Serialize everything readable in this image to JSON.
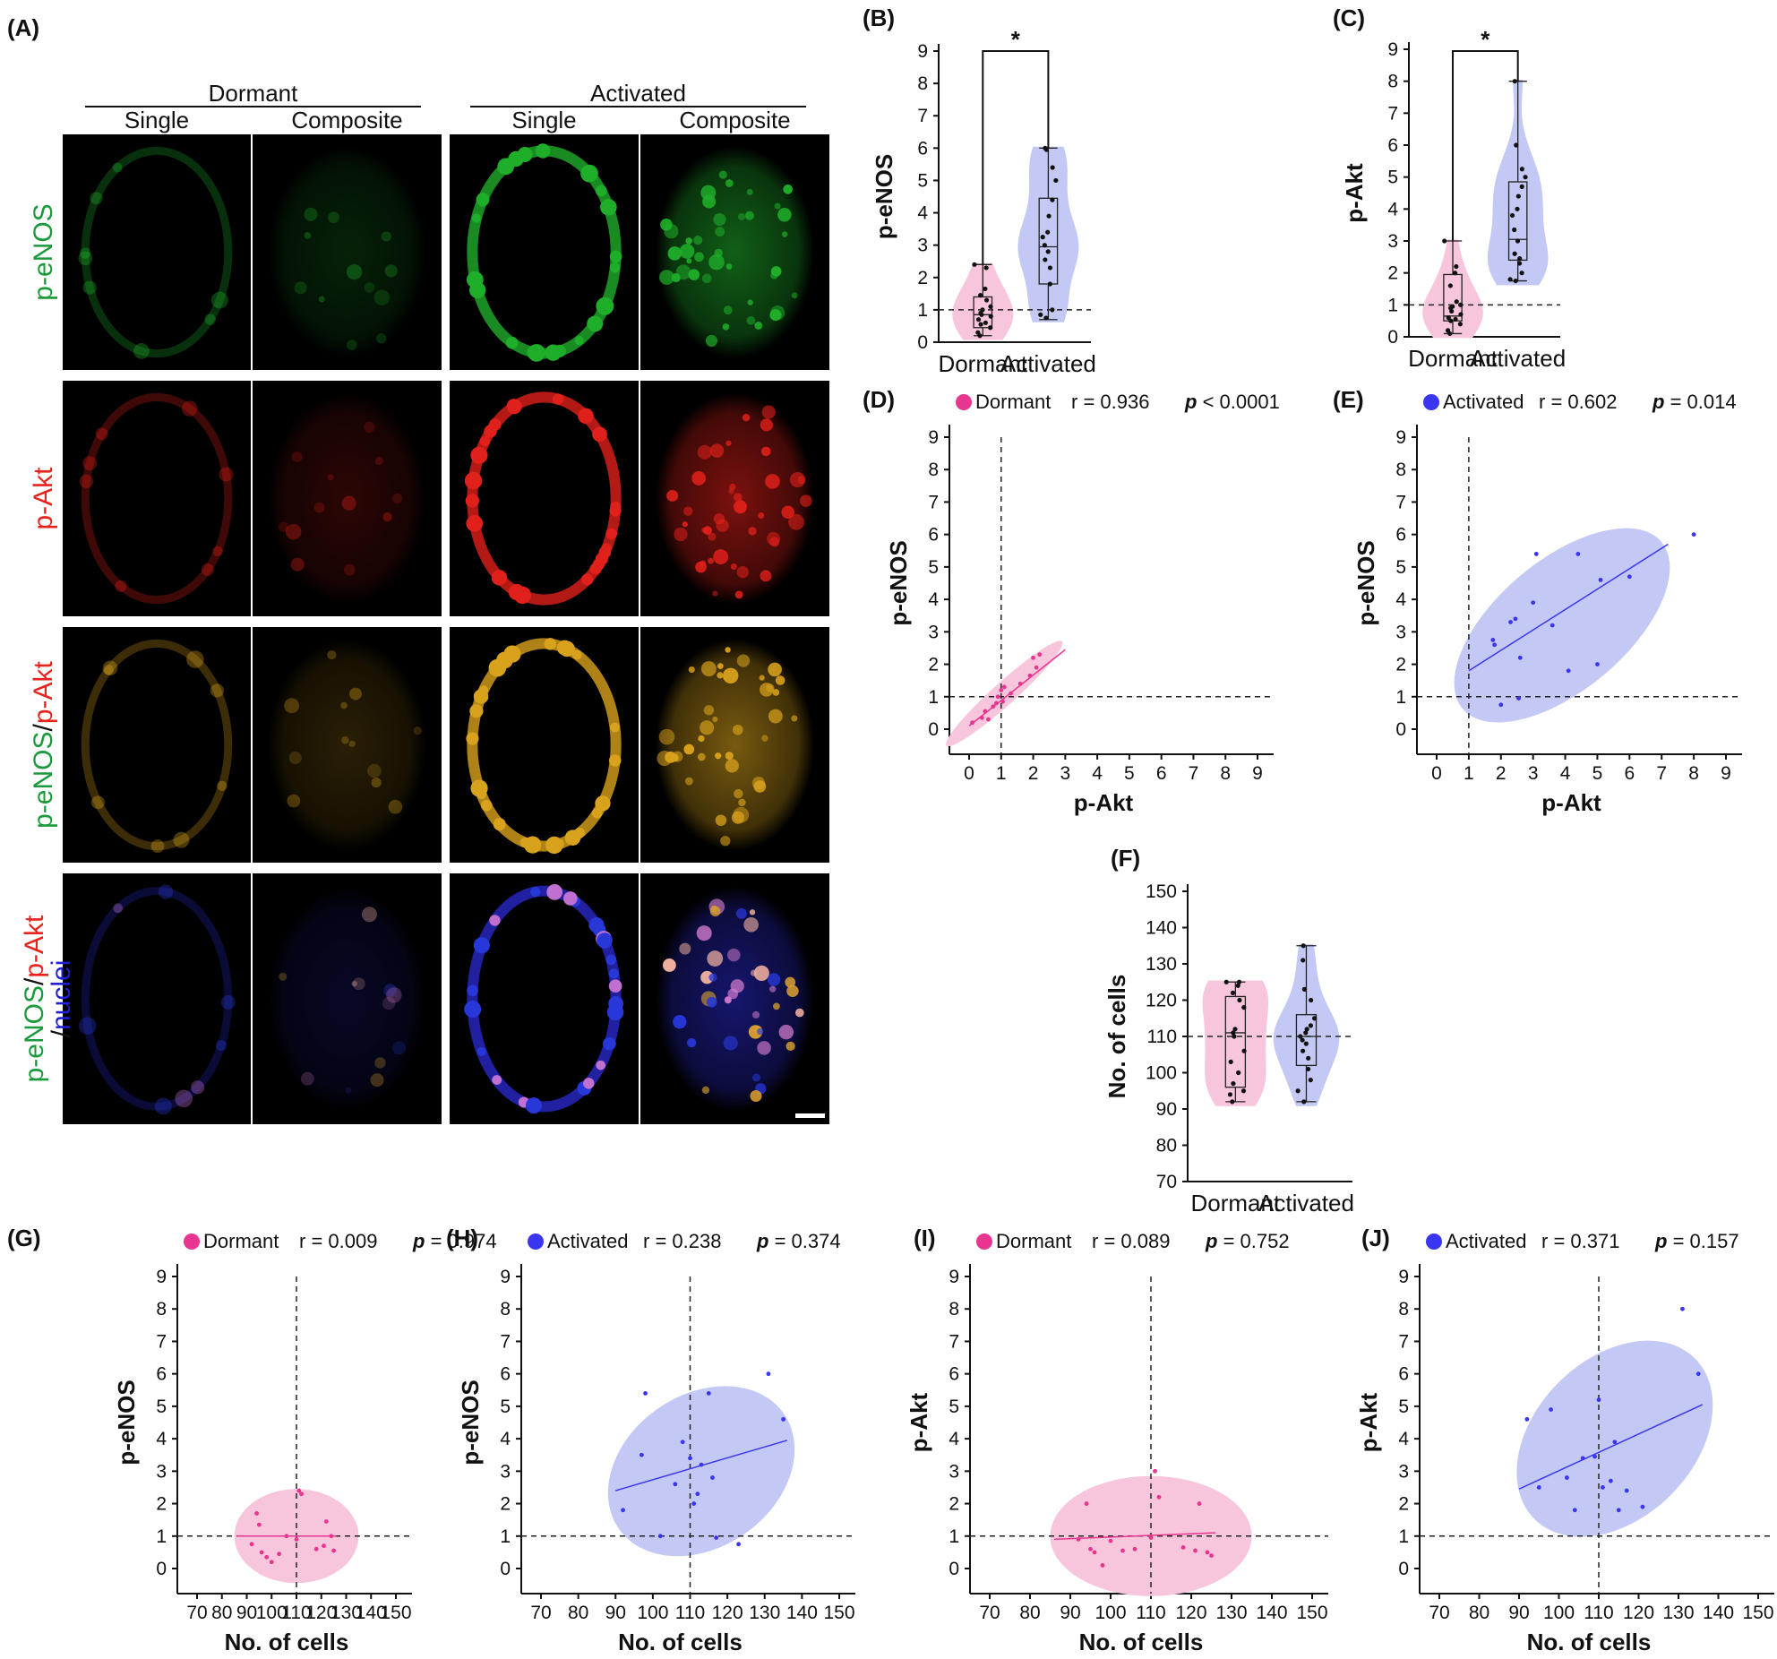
{
  "panel_a": {
    "label": "(A)",
    "group_headers": [
      "Dormant",
      "Activated"
    ],
    "column_headers": [
      "Single",
      "Composite",
      "Single",
      "Composite"
    ],
    "row_labels": [
      [
        {
          "text": "p-eNOS",
          "color": "#1a9a3a"
        }
      ],
      [
        {
          "text": "p-Akt",
          "color": "#e8231c"
        }
      ],
      [
        {
          "text": "p-eNOS",
          "color": "#1a9a3a"
        },
        {
          "text": "/",
          "color": "#111111"
        },
        {
          "text": "p-Akt",
          "color": "#e8231c"
        }
      ],
      [
        {
          "text": "p-eNOS",
          "color": "#1a9a3a"
        },
        {
          "text": "/",
          "color": "#111111"
        },
        {
          "text": "p-Akt",
          "color": "#e8231c"
        },
        {
          "text": "/",
          "color": "#111111"
        },
        {
          "text": "nuclei",
          "color": "#2020d0"
        }
      ]
    ],
    "channel_colors": {
      "green": "#1fae2a",
      "red": "#e0201a",
      "merge": "#d9a21c",
      "blue": "#2828c8"
    }
  },
  "colors": {
    "dormant": "#f7c6dc",
    "dormant_marker": "#e8358f",
    "activated": "#c3c9f4",
    "activated_marker": "#3a35f0"
  },
  "chart_data": [
    {
      "id": "B",
      "label": "(B)",
      "type": "violin",
      "ylabel": "p-eNOS",
      "ylim": [
        0,
        9
      ],
      "yticks": [
        0,
        1,
        2,
        3,
        4,
        5,
        6,
        7,
        8,
        9
      ],
      "reference_line": 1,
      "categories": [
        "Dormant",
        "Activated"
      ],
      "significance": "*",
      "groups": [
        {
          "name": "Dormant",
          "box": {
            "min": 0.2,
            "q1": 0.45,
            "median": 0.85,
            "q3": 1.4,
            "max": 2.4
          },
          "points": [
            0.2,
            0.3,
            0.45,
            0.55,
            0.6,
            0.7,
            0.8,
            0.85,
            0.9,
            1.0,
            1.1,
            1.3,
            1.45,
            1.65,
            2.3,
            2.4
          ]
        },
        {
          "name": "Activated",
          "box": {
            "min": 0.7,
            "q1": 1.8,
            "median": 2.95,
            "q3": 4.45,
            "max": 6.0
          },
          "points": [
            0.75,
            0.85,
            1.0,
            1.8,
            2.3,
            2.55,
            2.8,
            3.0,
            3.25,
            3.4,
            3.9,
            4.4,
            5.0,
            5.4,
            5.95,
            6.0
          ]
        }
      ]
    },
    {
      "id": "C",
      "label": "(C)",
      "type": "violin",
      "ylabel": "p-Akt",
      "ylim": [
        0,
        9
      ],
      "yticks": [
        0,
        1,
        2,
        3,
        4,
        5,
        6,
        7,
        8,
        9
      ],
      "reference_line": 1,
      "categories": [
        "Dormant",
        "Activated"
      ],
      "significance": "*",
      "groups": [
        {
          "name": "Dormant",
          "box": {
            "min": 0.1,
            "q1": 0.5,
            "median": 0.65,
            "q3": 1.95,
            "max": 3.0
          },
          "points": [
            0.1,
            0.2,
            0.4,
            0.5,
            0.55,
            0.6,
            0.7,
            0.8,
            0.9,
            0.95,
            1.0,
            1.1,
            1.6,
            2.0,
            2.2,
            3.0
          ]
        },
        {
          "name": "Activated",
          "box": {
            "min": 1.75,
            "q1": 2.4,
            "median": 3.05,
            "q3": 4.85,
            "max": 8.0
          },
          "points": [
            1.75,
            1.8,
            2.0,
            2.3,
            2.45,
            2.6,
            3.0,
            3.35,
            3.8,
            4.0,
            4.4,
            4.7,
            5.0,
            5.25,
            6.0,
            8.0
          ]
        }
      ]
    },
    {
      "id": "D",
      "label": "(D)",
      "type": "scatter",
      "xlabel": "p-Akt",
      "ylabel": "p-eNOS",
      "xlim": [
        0,
        9
      ],
      "ylim": [
        0,
        9
      ],
      "xticks": [
        0,
        1,
        2,
        3,
        4,
        5,
        6,
        7,
        8,
        9
      ],
      "yticks": [
        0,
        1,
        2,
        3,
        4,
        5,
        6,
        7,
        8,
        9
      ],
      "ref_x": 1,
      "ref_y": 1,
      "group": "Dormant",
      "r": "r = 0.936",
      "p_label": "p",
      "p_value": "< 0.0001",
      "points": [
        [
          0.1,
          0.2
        ],
        [
          0.4,
          0.35
        ],
        [
          0.5,
          0.55
        ],
        [
          0.6,
          0.3
        ],
        [
          0.75,
          0.7
        ],
        [
          0.85,
          0.8
        ],
        [
          0.9,
          1.0
        ],
        [
          1.0,
          1.2
        ],
        [
          1.05,
          0.85
        ],
        [
          1.1,
          1.3
        ],
        [
          1.3,
          1.1
        ],
        [
          1.6,
          1.4
        ],
        [
          1.9,
          1.65
        ],
        [
          2.0,
          2.2
        ],
        [
          2.2,
          2.3
        ],
        [
          2.1,
          1.9
        ]
      ],
      "fit": [
        [
          0.0,
          0.1
        ],
        [
          3.0,
          2.45
        ]
      ],
      "ellipse": {
        "cx": 1.1,
        "cy": 1.1,
        "along": 2.4,
        "across": 0.35,
        "angle_deg": 42
      }
    },
    {
      "id": "E",
      "label": "(E)",
      "type": "scatter",
      "xlabel": "p-Akt",
      "ylabel": "p-eNOS",
      "xlim": [
        0,
        9
      ],
      "ylim": [
        0,
        9
      ],
      "xticks": [
        0,
        1,
        2,
        3,
        4,
        5,
        6,
        7,
        8,
        9
      ],
      "yticks": [
        0,
        1,
        2,
        3,
        4,
        5,
        6,
        7,
        8,
        9
      ],
      "ref_x": 1,
      "ref_y": 1,
      "group": "Activated",
      "r": "r = 0.602",
      "p_label": "p",
      "p_value": "= 0.014",
      "points": [
        [
          1.75,
          2.75
        ],
        [
          1.8,
          2.6
        ],
        [
          2.0,
          0.75
        ],
        [
          2.3,
          3.3
        ],
        [
          2.45,
          3.4
        ],
        [
          2.6,
          2.2
        ],
        [
          2.55,
          0.95
        ],
        [
          3.0,
          3.9
        ],
        [
          3.1,
          5.4
        ],
        [
          3.6,
          3.2
        ],
        [
          4.1,
          1.8
        ],
        [
          4.4,
          5.4
        ],
        [
          5.0,
          2.0
        ],
        [
          5.1,
          4.6
        ],
        [
          6.0,
          4.7
        ],
        [
          8.0,
          6.0
        ]
      ],
      "fit": [
        [
          1.0,
          1.8
        ],
        [
          7.2,
          5.7
        ]
      ],
      "ellipse": {
        "cx": 3.9,
        "cy": 3.2,
        "along": 4.0,
        "across": 2.0,
        "angle_deg": 40
      }
    },
    {
      "id": "F",
      "label": "(F)",
      "type": "violin",
      "ylabel": "No. of cells",
      "ylim": [
        70,
        150
      ],
      "yticks": [
        70,
        80,
        90,
        100,
        110,
        120,
        130,
        140,
        150
      ],
      "reference_line": 110,
      "categories": [
        "Dormant",
        "Activated"
      ],
      "groups": [
        {
          "name": "Dormant",
          "box": {
            "min": 92,
            "q1": 96,
            "median": 111,
            "q3": 121,
            "max": 125
          },
          "points": [
            92,
            94,
            95,
            97,
            100,
            103,
            106,
            110,
            111,
            112,
            118,
            120,
            122,
            124,
            125,
            125
          ]
        },
        {
          "name": "Activated",
          "box": {
            "min": 92,
            "q1": 102,
            "median": 110,
            "q3": 116,
            "max": 135
          },
          "points": [
            92,
            95,
            98,
            101,
            104,
            106,
            108,
            109,
            110,
            111,
            112,
            113,
            115,
            120,
            123,
            131,
            135
          ]
        }
      ]
    },
    {
      "id": "G",
      "label": "(G)",
      "type": "scatter",
      "xlabel": "No. of cells",
      "ylabel": "p-eNOS",
      "xlim": [
        70,
        150
      ],
      "ylim": [
        0,
        9
      ],
      "xticks": [
        70,
        80,
        90,
        100,
        110,
        120,
        130,
        140,
        150
      ],
      "yticks": [
        0,
        1,
        2,
        3,
        4,
        5,
        6,
        7,
        8,
        9
      ],
      "ref_x": 110,
      "ref_y": 1,
      "group": "Dormant",
      "r": "r = 0.009",
      "p_label": "p",
      "p_value": "= 0.974",
      "points": [
        [
          92,
          0.75
        ],
        [
          94,
          1.7
        ],
        [
          95,
          1.35
        ],
        [
          96,
          0.5
        ],
        [
          98,
          0.35
        ],
        [
          100,
          0.2
        ],
        [
          103,
          0.45
        ],
        [
          106,
          1.0
        ],
        [
          110,
          0.9
        ],
        [
          111,
          2.4
        ],
        [
          112,
          2.3
        ],
        [
          118,
          0.6
        ],
        [
          121,
          0.7
        ],
        [
          122,
          1.45
        ],
        [
          124,
          1.0
        ],
        [
          125,
          0.55
        ]
      ],
      "fit": [
        [
          86,
          1.0
        ],
        [
          126,
          1.0
        ]
      ],
      "ellipse": {
        "cx": 110,
        "cy": 1.0,
        "rx_units": 25,
        "ry_units": 1.45,
        "angle_deg": 0
      }
    },
    {
      "id": "H",
      "label": "(H)",
      "type": "scatter",
      "xlabel": "No. of cells",
      "ylabel": "p-eNOS",
      "xlim": [
        70,
        150
      ],
      "ylim": [
        0,
        9
      ],
      "xticks": [
        70,
        80,
        90,
        100,
        110,
        120,
        130,
        140,
        150
      ],
      "yticks": [
        0,
        1,
        2,
        3,
        4,
        5,
        6,
        7,
        8,
        9
      ],
      "ref_x": 110,
      "ref_y": 1,
      "group": "Activated",
      "r": "r = 0.238",
      "p_label": "p",
      "p_value": "= 0.374",
      "points": [
        [
          92,
          1.8
        ],
        [
          97,
          3.5
        ],
        [
          98,
          5.4
        ],
        [
          102,
          1.0
        ],
        [
          106,
          2.6
        ],
        [
          108,
          3.9
        ],
        [
          110,
          3.4
        ],
        [
          111,
          2.0
        ],
        [
          112,
          2.3
        ],
        [
          113,
          3.2
        ],
        [
          115,
          5.4
        ],
        [
          116,
          2.8
        ],
        [
          117,
          0.95
        ],
        [
          123,
          0.75
        ],
        [
          131,
          6.0
        ],
        [
          135,
          4.6
        ]
      ],
      "fit": [
        [
          90,
          2.4
        ],
        [
          136,
          3.95
        ]
      ],
      "ellipse": {
        "cx": 113,
        "cy": 3.0,
        "along": 3.1,
        "across": 2.35,
        "angle_deg": 35
      }
    },
    {
      "id": "I",
      "label": "(I)",
      "type": "scatter",
      "xlabel": "No. of cells",
      "ylabel": "p-Akt",
      "xlim": [
        70,
        150
      ],
      "ylim": [
        0,
        9
      ],
      "xticks": [
        70,
        80,
        90,
        100,
        110,
        120,
        130,
        140,
        150
      ],
      "yticks": [
        0,
        1,
        2,
        3,
        4,
        5,
        6,
        7,
        8,
        9
      ],
      "ref_x": 110,
      "ref_y": 1,
      "group": "Dormant",
      "r": "r = 0.089",
      "p_label": "p",
      "p_value": "= 0.752",
      "points": [
        [
          92,
          0.9
        ],
        [
          94,
          2.0
        ],
        [
          95,
          0.6
        ],
        [
          96,
          0.5
        ],
        [
          98,
          0.1
        ],
        [
          100,
          0.85
        ],
        [
          103,
          0.55
        ],
        [
          106,
          0.6
        ],
        [
          110,
          0.95
        ],
        [
          111,
          3.0
        ],
        [
          112,
          2.2
        ],
        [
          118,
          0.65
        ],
        [
          121,
          0.55
        ],
        [
          122,
          2.0
        ],
        [
          124,
          0.5
        ],
        [
          125,
          0.4
        ]
      ],
      "fit": [
        [
          86,
          0.9
        ],
        [
          126,
          1.1
        ]
      ],
      "ellipse": {
        "cx": 110,
        "cy": 1.0,
        "rx_units": 25,
        "ry_units": 1.85,
        "angle_deg": 0
      }
    },
    {
      "id": "J",
      "label": "(J)",
      "type": "scatter",
      "xlabel": "No. of cells",
      "ylabel": "p-Akt",
      "xlim": [
        70,
        150
      ],
      "ylim": [
        0,
        9
      ],
      "xticks": [
        70,
        80,
        90,
        100,
        110,
        120,
        130,
        140,
        150
      ],
      "yticks": [
        0,
        1,
        2,
        3,
        4,
        5,
        6,
        7,
        8,
        9
      ],
      "ref_x": 110,
      "ref_y": 1,
      "group": "Activated",
      "r": "r = 0.371",
      "p_label": "p",
      "p_value": "= 0.157",
      "points": [
        [
          92,
          4.6
        ],
        [
          95,
          2.5
        ],
        [
          98,
          4.9
        ],
        [
          102,
          2.8
        ],
        [
          104,
          1.8
        ],
        [
          106,
          3.4
        ],
        [
          109,
          3.45
        ],
        [
          110,
          5.2
        ],
        [
          111,
          2.5
        ],
        [
          113,
          2.7
        ],
        [
          114,
          3.9
        ],
        [
          115,
          1.8
        ],
        [
          117,
          2.4
        ],
        [
          121,
          1.9
        ],
        [
          131,
          8.0
        ],
        [
          135,
          6.0
        ]
      ],
      "fit": [
        [
          90,
          2.45
        ],
        [
          136,
          5.05
        ]
      ],
      "ellipse": {
        "cx": 114,
        "cy": 4.0,
        "along": 3.5,
        "across": 2.45,
        "angle_deg": 45
      }
    }
  ]
}
